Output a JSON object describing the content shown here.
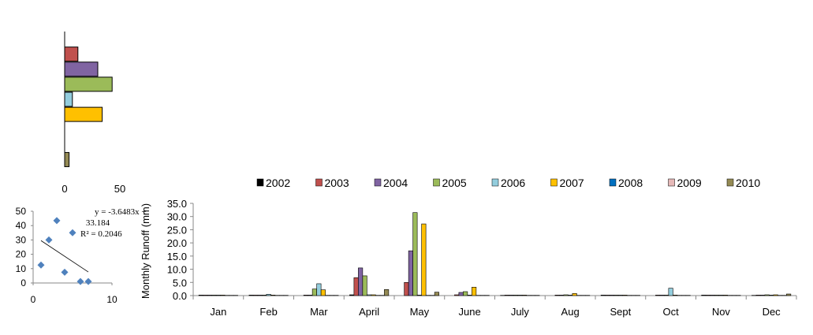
{
  "chart_data": [
    {
      "type": "bar",
      "orientation": "horizontal",
      "categories": [
        "2002",
        "2003",
        "2004",
        "2005",
        "2006",
        "2007",
        "2008",
        "2009",
        "2010"
      ],
      "values": [
        0,
        12,
        30,
        43,
        7,
        34,
        0,
        0,
        4
      ],
      "xticks": [
        "0",
        "50"
      ],
      "xlim": [
        0,
        50
      ],
      "colors": [
        "#000000",
        "#c0504d",
        "#8064a2",
        "#9bbb59",
        "#93cddd",
        "#ffc000",
        "#0070c0",
        "#e6b9b8",
        "#948a54"
      ]
    },
    {
      "type": "scatter",
      "x": [
        1,
        2,
        3,
        4,
        5,
        6,
        7
      ],
      "y": [
        12.5,
        30,
        43.5,
        7.5,
        35,
        1,
        1
      ],
      "xlim": [
        0,
        10
      ],
      "ylim": [
        0,
        50
      ],
      "xticks": [
        "0",
        "10"
      ],
      "yticks": [
        "0",
        "10",
        "20",
        "30",
        "40",
        "50"
      ],
      "trendline": {
        "slope": -3.6483,
        "intercept": 33.184,
        "x_from": 1,
        "x_to": 7
      },
      "annotation": [
        "y = -3.6483x +",
        "33.184",
        "R² = 0.2046"
      ],
      "marker_color": "#4f81bd"
    },
    {
      "type": "bar",
      "categories": [
        "Jan",
        "Feb",
        "Mar",
        "April",
        "May",
        "June",
        "July",
        "Aug",
        "Sept",
        "Oct",
        "Nov",
        "Dec"
      ],
      "ylabel": "Monthly  Runoff (mm)",
      "ylim": [
        0,
        35
      ],
      "yticks": [
        "0.0",
        "5.0",
        "10.0",
        "15.0",
        "20.0",
        "25.0",
        "30.0",
        "35.0"
      ],
      "legend_position": "top",
      "series": [
        {
          "name": "2002",
          "color": "#000000",
          "values": [
            0.2,
            0.2,
            0,
            0.3,
            0,
            0,
            0.1,
            0,
            0.2,
            0,
            0.2,
            0.1
          ]
        },
        {
          "name": "2003",
          "color": "#c0504d",
          "values": [
            0.2,
            0.2,
            0.2,
            6.8,
            5.0,
            0.3,
            0.2,
            0.2,
            0.2,
            0.2,
            0.2,
            0.2
          ]
        },
        {
          "name": "2004",
          "color": "#8064a2",
          "values": [
            0.2,
            0.2,
            0.2,
            10.5,
            17.0,
            1.2,
            0.2,
            0.2,
            0.2,
            0.2,
            0.2,
            0.2
          ]
        },
        {
          "name": "2005",
          "color": "#9bbb59",
          "values": [
            0.2,
            0.2,
            2.5,
            7.5,
            31.5,
            1.5,
            0.2,
            0.3,
            0.2,
            0.2,
            0.2,
            0.3
          ]
        },
        {
          "name": "2006",
          "color": "#93cddd",
          "values": [
            0.2,
            0.5,
            4.5,
            0.3,
            0.2,
            0.2,
            0.2,
            0.2,
            0.2,
            2.8,
            0.2,
            0.2
          ]
        },
        {
          "name": "2007",
          "color": "#ffc000",
          "values": [
            0.2,
            0.2,
            2.2,
            0.3,
            27.2,
            3.2,
            0.2,
            0.8,
            0.2,
            0.2,
            0.2,
            0.3
          ]
        },
        {
          "name": "2008",
          "color": "#0070c0",
          "values": [
            0.1,
            0.1,
            0.1,
            0.1,
            0.1,
            0.1,
            0.1,
            0.1,
            0.1,
            0.1,
            0.1,
            0.1
          ]
        },
        {
          "name": "2009",
          "color": "#e6b9b8",
          "values": [
            0.1,
            0.1,
            0.1,
            0.1,
            0.1,
            0.1,
            0.1,
            0.1,
            0.1,
            0.1,
            0.1,
            0.1
          ]
        },
        {
          "name": "2010",
          "color": "#948a54",
          "values": [
            0.1,
            0.1,
            0.1,
            2.3,
            1.3,
            0.1,
            0.1,
            0.1,
            0.1,
            0.1,
            0.1,
            0.6
          ]
        }
      ]
    }
  ]
}
